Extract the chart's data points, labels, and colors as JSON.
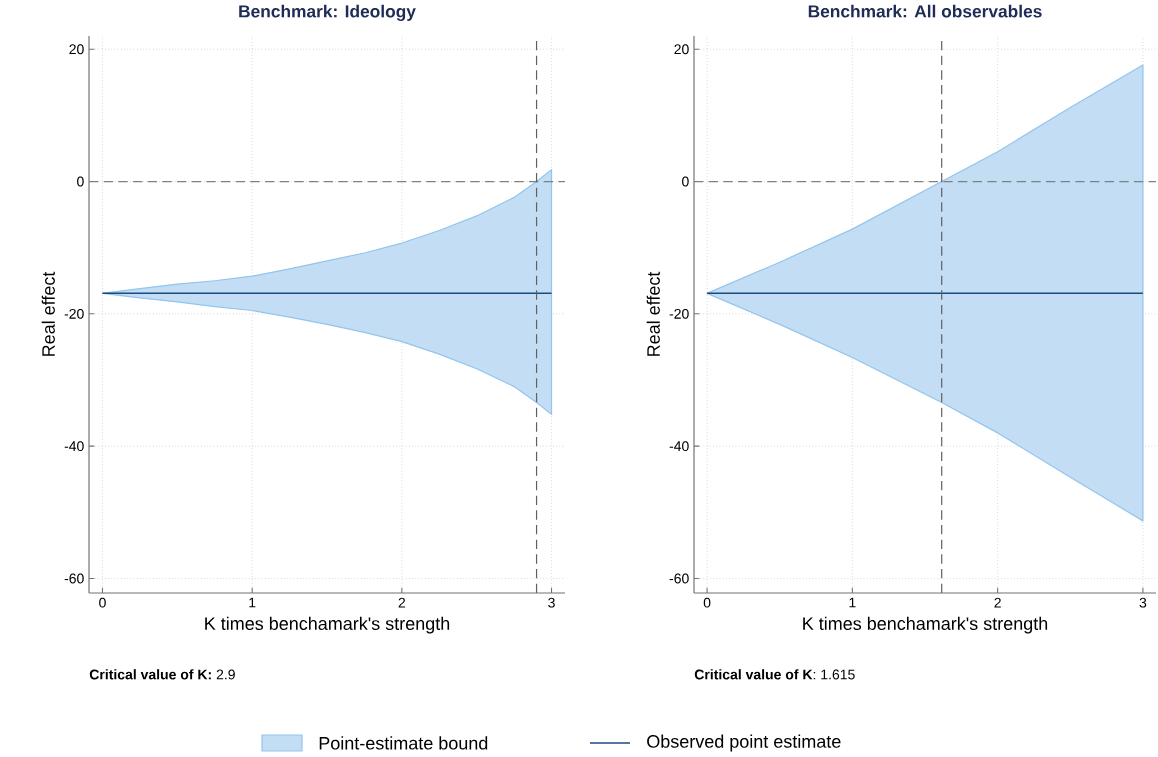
{
  "chart_data": [
    {
      "type": "line",
      "title": "Benchmark: Ideology",
      "xlabel": "K times benchamark's strength",
      "ylabel": "Real effect",
      "xlim": [
        -0.09,
        3.09
      ],
      "ylim": [
        -62.2,
        22
      ],
      "xticks": [
        0,
        1,
        2,
        3
      ],
      "yticks": [
        -60,
        -40,
        -20,
        0,
        20
      ],
      "grid": true,
      "legend": "bottom",
      "series": [
        {
          "name": "Observed point estimate",
          "color": "#1a4a80",
          "x": [
            0,
            0.25,
            0.5,
            0.75,
            1,
            1.25,
            1.5,
            1.75,
            2,
            2.25,
            2.5,
            2.75,
            2.9,
            3
          ],
          "values": [
            -16.9,
            -16.9,
            -16.9,
            -16.9,
            -16.9,
            -16.9,
            -16.9,
            -16.9,
            -16.9,
            -16.9,
            -16.9,
            -16.9,
            -16.9,
            -16.9
          ],
          "upper": [
            -16.9,
            -16.2,
            -15.5,
            -15.0,
            -14.3,
            -13.2,
            -12.0,
            -10.8,
            -9.3,
            -7.4,
            -5.2,
            -2.4,
            0,
            1.8
          ],
          "lower": [
            -16.9,
            -17.6,
            -18.2,
            -18.9,
            -19.5,
            -20.5,
            -21.6,
            -22.8,
            -24.2,
            -26.1,
            -28.3,
            -31.0,
            -33.4,
            -35.2
          ]
        }
      ],
      "ref_lines": [
        {
          "axis": "y",
          "value": 0,
          "color": "#808080",
          "line_style": "dashed"
        },
        {
          "axis": "x",
          "value": 2.9,
          "color": "#606060",
          "line_style": "dashed"
        }
      ],
      "annotations": [
        "**Critical value of K:** 2.9",
        "Point-estimate bound"
      ]
    },
    {
      "type": "line",
      "title": "Benchmark: All observables",
      "xlabel": "K times benchamark's strength",
      "ylabel": "Real effect",
      "xlim": [
        -0.09,
        3.09
      ],
      "ylim": [
        -62.2,
        22
      ],
      "xticks": [
        0,
        1,
        2,
        3
      ],
      "yticks": [
        -60,
        -40,
        -20,
        0,
        20
      ],
      "grid": true,
      "series": [
        {
          "color": "#1a4a80",
          "x": [
            0,
            0.5,
            1,
            1.615,
            2,
            2.5,
            3
          ],
          "values": [
            -16.9,
            -16.9,
            -16.9,
            -16.9,
            -16.9,
            -16.9,
            -16.9
          ],
          "upper": [
            -16.9,
            -12.2,
            -7.2,
            0,
            4.5,
            11.2,
            17.6
          ],
          "lower": [
            -16.9,
            -21.6,
            -26.6,
            -33.4,
            -38.0,
            -44.7,
            -51.3
          ]
        }
      ],
      "ref_lines": [
        {
          "axis": "y",
          "value": 0,
          "color": "#808080",
          "line_style": "dashed"
        },
        {
          "axis": "x",
          "value": 1.615,
          "color": "#606060",
          "line_style": "dashed"
        }
      ],
      "annotations": [
        "**Critical value of K**: 1.615"
      ]
    }
  ]
}
